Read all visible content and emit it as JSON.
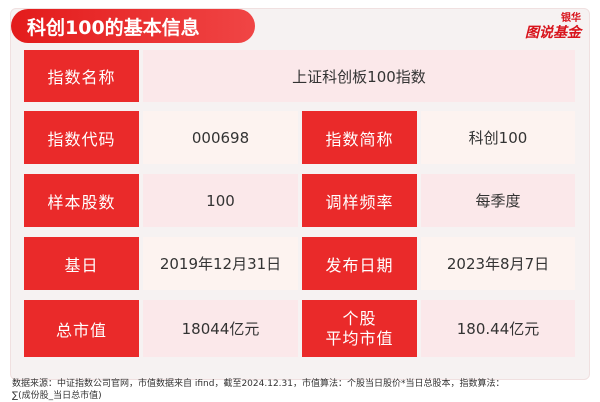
{
  "header": {
    "title": "科创100的基本信息",
    "logo_top": "银华",
    "logo_bottom": "图说基金"
  },
  "rows": [
    {
      "label": "指数名称",
      "value": "上证科创板100指数"
    },
    {
      "label": "指数代码",
      "value": "000698",
      "label2": "指数简称",
      "value2": "科创100"
    },
    {
      "label": "样本股数",
      "value": "100",
      "label2": "调样频率",
      "value2": "每季度"
    },
    {
      "label": "基日",
      "value": "2019年12月31日",
      "label2": "发布日期",
      "value2": "2023年8月7日"
    },
    {
      "label": "总市值",
      "value": "18044亿元",
      "label2_line1": "个股",
      "label2_line2": "平均市值",
      "value2": "180.44亿元"
    }
  ],
  "footnote": {
    "line1": "数据来源：中证指数公司官网，市值数据来自 ifind，截至2024.12.31，市值算法：个股当日股价*当日总股本，指数算法：",
    "line2": "∑(成份股_当日总市值)"
  },
  "colors": {
    "accent": "#e31b1b",
    "label_bg": "#ea2a2a",
    "value_bg": "#fbe8ea"
  }
}
